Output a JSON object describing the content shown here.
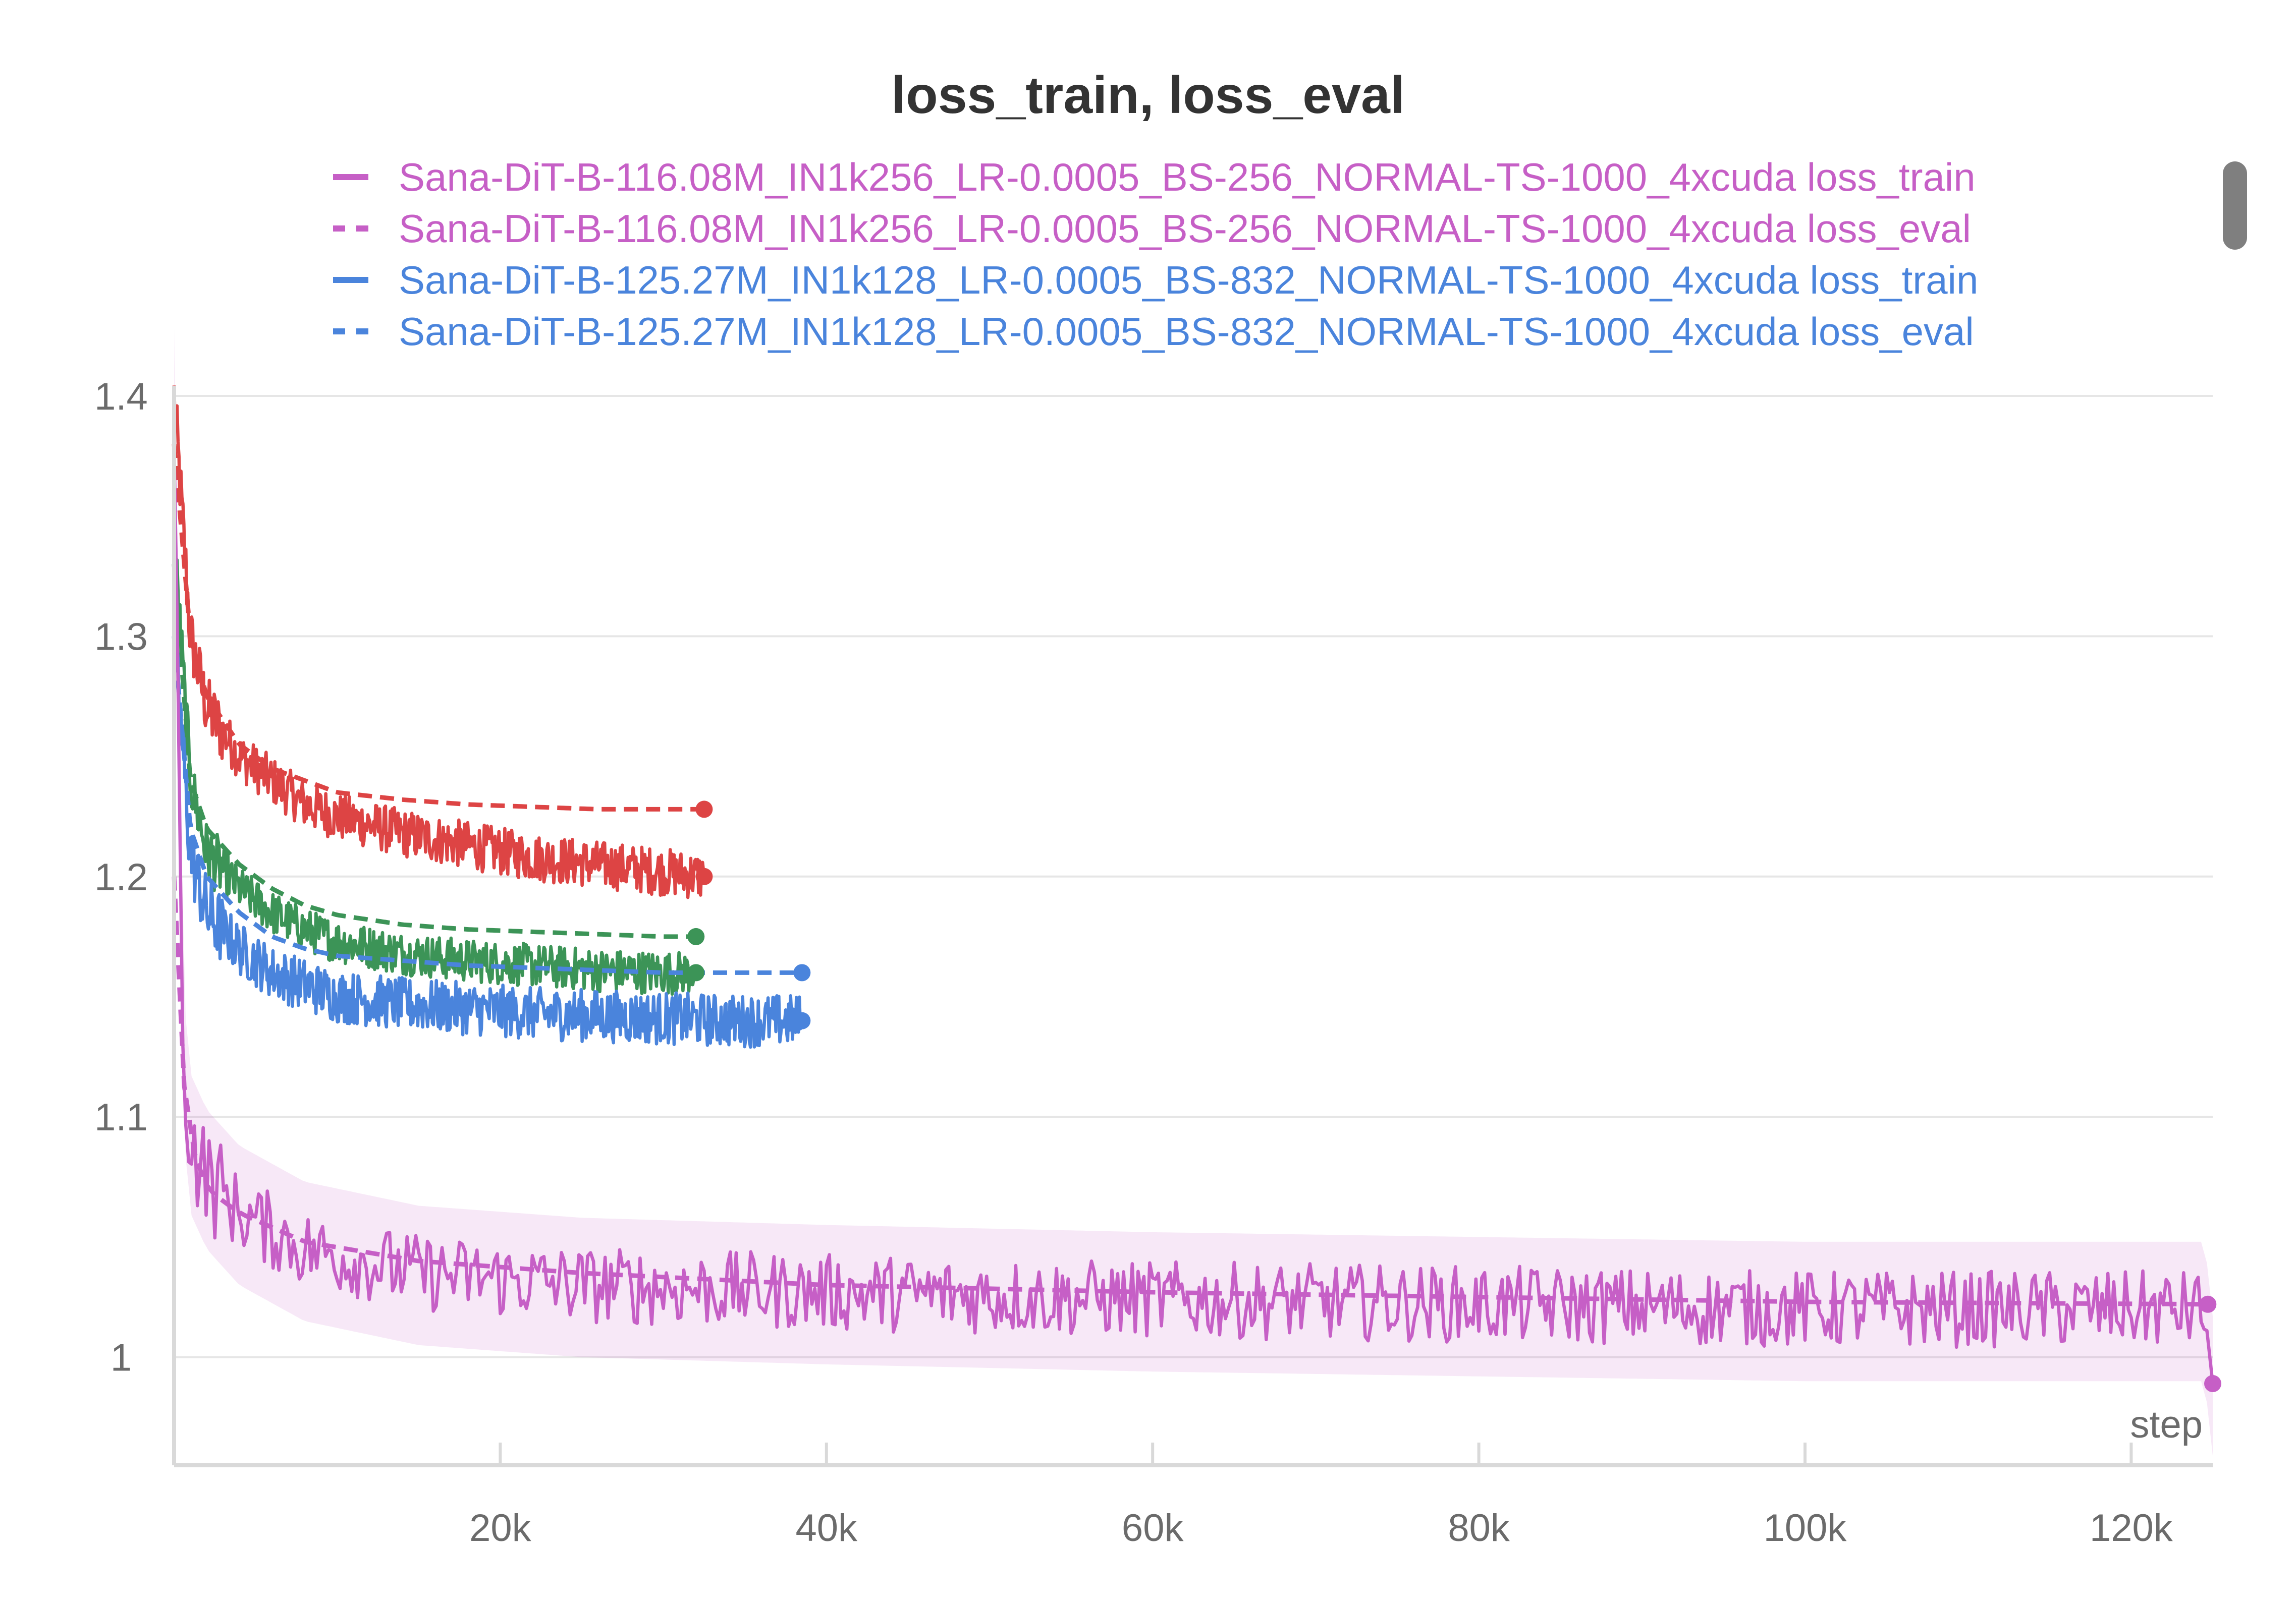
{
  "chart_data": {
    "type": "line",
    "title": "loss_train, loss_eval",
    "xlabel": "step",
    "ylabel": "",
    "xlim": [
      0,
      125000
    ],
    "ylim": [
      0.955,
      1.4
    ],
    "grid": true,
    "legend_position": "top",
    "x_ticks": [
      {
        "value": 20000,
        "label": "20k"
      },
      {
        "value": 40000,
        "label": "40k"
      },
      {
        "value": 60000,
        "label": "60k"
      },
      {
        "value": 80000,
        "label": "80k"
      },
      {
        "value": 100000,
        "label": "100k"
      },
      {
        "value": 120000,
        "label": "120k"
      }
    ],
    "y_ticks": [
      {
        "value": 1.0,
        "label": "1"
      },
      {
        "value": 1.1,
        "label": "1.1"
      },
      {
        "value": 1.2,
        "label": "1.2"
      },
      {
        "value": 1.3,
        "label": "1.3"
      },
      {
        "value": 1.4,
        "label": "1.4"
      }
    ],
    "legend": [
      {
        "name": "Sana-DiT-B-116.08M_IN1k256_LR-0.0005_BS-256_NORMAL-TS-1000_4xcuda loss_train",
        "color": "#c65fc6",
        "dash": false
      },
      {
        "name": "Sana-DiT-B-116.08M_IN1k256_LR-0.0005_BS-256_NORMAL-TS-1000_4xcuda loss_eval",
        "color": "#c65fc6",
        "dash": true
      },
      {
        "name": "Sana-DiT-B-125.27M_IN1k128_LR-0.0005_BS-832_NORMAL-TS-1000_4xcuda loss_train",
        "color": "#4a84dc",
        "dash": false
      },
      {
        "name": "Sana-DiT-B-125.27M_IN1k128_LR-0.0005_BS-832_NORMAL-TS-1000_4xcuda loss_eval",
        "color": "#4a84dc",
        "dash": true
      }
    ],
    "series": [
      {
        "color": "#dd4444",
        "dash": true,
        "end_marker": true,
        "x": [
          0,
          1000,
          2000,
          4000,
          6000,
          8000,
          10000,
          14000,
          18000,
          22000,
          26000,
          30000,
          32500
        ],
        "y": [
          1.38,
          1.3,
          1.275,
          1.255,
          1.245,
          1.24,
          1.235,
          1.232,
          1.23,
          1.229,
          1.228,
          1.228,
          1.228
        ]
      },
      {
        "color": "#dd4444",
        "dash": false,
        "noise": 0.01,
        "end_marker": true,
        "x": [
          0,
          1000,
          2000,
          4000,
          6000,
          8000,
          10000,
          14000,
          18000,
          22000,
          26000,
          30000,
          32500
        ],
        "y": [
          1.4,
          1.3,
          1.27,
          1.25,
          1.24,
          1.23,
          1.225,
          1.218,
          1.213,
          1.208,
          1.205,
          1.202,
          1.2
        ]
      },
      {
        "color": "#3c9457",
        "dash": true,
        "end_marker": true,
        "x": [
          0,
          1000,
          2000,
          4000,
          6000,
          8000,
          10000,
          14000,
          18000,
          22000,
          26000,
          30000,
          32000
        ],
        "y": [
          1.33,
          1.24,
          1.22,
          1.205,
          1.195,
          1.188,
          1.184,
          1.18,
          1.178,
          1.177,
          1.176,
          1.175,
          1.175
        ]
      },
      {
        "color": "#3c9457",
        "dash": false,
        "noise": 0.009,
        "end_marker": true,
        "x": [
          0,
          1000,
          2000,
          4000,
          6000,
          8000,
          10000,
          14000,
          18000,
          22000,
          26000,
          30000,
          32000
        ],
        "y": [
          1.34,
          1.24,
          1.21,
          1.195,
          1.185,
          1.178,
          1.173,
          1.168,
          1.165,
          1.163,
          1.161,
          1.16,
          1.16
        ]
      },
      {
        "color": "#4a84dc",
        "dash": true,
        "end_marker": true,
        "x": [
          0,
          1000,
          2000,
          4000,
          6000,
          8000,
          10000,
          14000,
          18000,
          22000,
          26000,
          30000,
          34000,
          38500
        ],
        "y": [
          1.3,
          1.22,
          1.2,
          1.185,
          1.175,
          1.17,
          1.167,
          1.165,
          1.163,
          1.162,
          1.161,
          1.16,
          1.16,
          1.16
        ]
      },
      {
        "color": "#4a84dc",
        "dash": false,
        "noise": 0.011,
        "end_marker": true,
        "x": [
          0,
          1000,
          2000,
          4000,
          6000,
          8000,
          10000,
          14000,
          18000,
          22000,
          26000,
          30000,
          34000,
          38500
        ],
        "y": [
          1.3,
          1.21,
          1.185,
          1.17,
          1.16,
          1.155,
          1.15,
          1.147,
          1.145,
          1.143,
          1.142,
          1.141,
          1.14,
          1.14
        ]
      },
      {
        "color": "#c65fc6",
        "dash": true,
        "end_marker": true,
        "x": [
          0,
          500,
          1000,
          2000,
          4000,
          8000,
          15000,
          25000,
          40000,
          60000,
          80000,
          100000,
          124700
        ],
        "y": [
          1.2,
          1.12,
          1.09,
          1.07,
          1.06,
          1.048,
          1.04,
          1.035,
          1.03,
          1.027,
          1.025,
          1.023,
          1.022
        ]
      },
      {
        "color": "#c65fc6",
        "dash": false,
        "noise": 0.016,
        "band": true,
        "end_marker": true,
        "x": [
          0,
          500,
          1000,
          2000,
          4000,
          8000,
          15000,
          25000,
          40000,
          60000,
          80000,
          100000,
          124500,
          125000
        ],
        "y": [
          1.4,
          1.13,
          1.09,
          1.075,
          1.06,
          1.045,
          1.035,
          1.03,
          1.027,
          1.024,
          1.022,
          1.02,
          1.02,
          0.989
        ]
      }
    ]
  }
}
